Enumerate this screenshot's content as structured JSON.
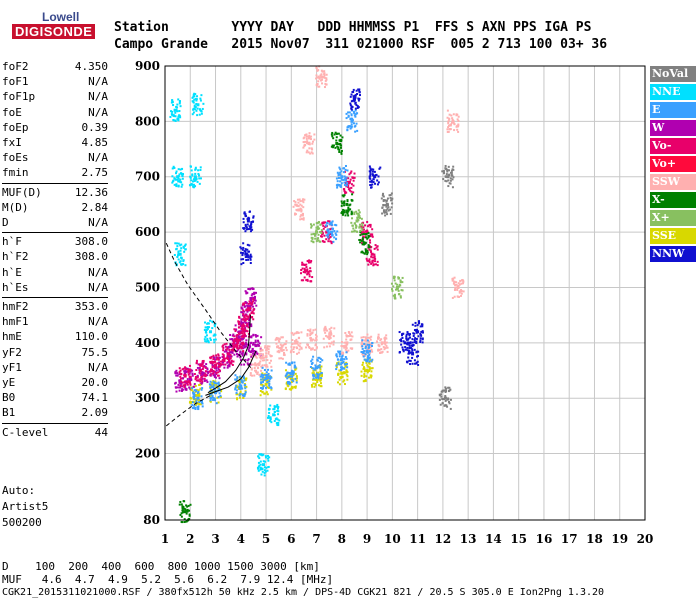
{
  "logo": {
    "line1": "Lowell",
    "line2": "DIGISONDE"
  },
  "header": {
    "row1": "Station        YYYY DAY   DDD HHMMSS P1  FFS S AXN PPS IGA PS",
    "row2": "Campo Grande   2015 Nov07  311 021000 RSF  005 2 713 100 03+ 36"
  },
  "params": [
    {
      "name": "foF2",
      "value": "4.350"
    },
    {
      "name": "foF1",
      "value": "N/A"
    },
    {
      "name": "foF1p",
      "value": "N/A"
    },
    {
      "name": "foE",
      "value": "N/A"
    },
    {
      "name": "foEp",
      "value": "0.39"
    },
    {
      "name": "fxI",
      "value": "4.85"
    },
    {
      "name": "foEs",
      "value": "N/A"
    },
    {
      "name": "fmin",
      "value": "2.75"
    },
    {
      "name": "MUF(D)",
      "value": "12.36"
    },
    {
      "name": "M(D)",
      "value": "2.84"
    },
    {
      "name": "D",
      "value": "N/A"
    },
    {
      "name": "h`F",
      "value": "308.0"
    },
    {
      "name": "h`F2",
      "value": "308.0"
    },
    {
      "name": "h`E",
      "value": "N/A"
    },
    {
      "name": "h`Es",
      "value": "N/A"
    },
    {
      "name": "hmF2",
      "value": "353.0"
    },
    {
      "name": "hmF1",
      "value": "N/A"
    },
    {
      "name": "hmE",
      "value": "110.0"
    },
    {
      "name": "yF2",
      "value": "75.5"
    },
    {
      "name": "yF1",
      "value": "N/A"
    },
    {
      "name": "yE",
      "value": "20.0"
    },
    {
      "name": "B0",
      "value": "74.1"
    },
    {
      "name": "B1",
      "value": "2.09"
    },
    {
      "name": "C-level",
      "value": "44"
    }
  ],
  "auto": {
    "line1": "Auto:",
    "line2": "Artist5",
    "line3": "500200"
  },
  "legend": [
    {
      "label": "NoVal",
      "color": "#808080"
    },
    {
      "label": "NNE",
      "color": "#00e0ff"
    },
    {
      "label": "E",
      "color": "#3aa0ff"
    },
    {
      "label": "W",
      "color": "#b000b0"
    },
    {
      "label": "Vo-",
      "color": "#e8006a"
    },
    {
      "label": "Vo+",
      "color": "#ff0a3c"
    },
    {
      "label": "SSW",
      "color": "#ffb0b0"
    },
    {
      "label": "X-",
      "color": "#008000"
    },
    {
      "label": "X+",
      "color": "#88c060"
    },
    {
      "label": "SSE",
      "color": "#d8d800"
    },
    {
      "label": "NNW",
      "color": "#1010d0"
    }
  ],
  "chart_data": {
    "type": "scatter",
    "xlim": [
      1,
      20
    ],
    "ylim": [
      80,
      900
    ],
    "x_ticks": [
      "1",
      "2",
      "3",
      "4",
      "5",
      "6",
      "7",
      "8",
      "9",
      "10",
      "11",
      "12",
      "13",
      "14",
      "15",
      "16",
      "17",
      "18",
      "19",
      "20"
    ],
    "y_ticks": [
      "80",
      "200",
      "300",
      "400",
      "500",
      "600",
      "700",
      "800",
      "900"
    ],
    "grid": true,
    "legend_position": "right",
    "series": [
      {
        "name": "W",
        "color": "#b000b0",
        "points": [
          [
            1.6,
            330
          ],
          [
            2.0,
            335
          ],
          [
            2.5,
            345
          ],
          [
            3.0,
            355
          ],
          [
            3.5,
            375
          ],
          [
            3.8,
            395
          ],
          [
            4.0,
            420
          ],
          [
            4.2,
            450
          ],
          [
            4.4,
            480
          ],
          [
            4.6,
            395
          ],
          [
            4.2,
            380
          ]
        ]
      },
      {
        "name": "Vo-",
        "color": "#e8006a",
        "points": [
          [
            1.8,
            340
          ],
          [
            2.4,
            350
          ],
          [
            3.0,
            360
          ],
          [
            3.5,
            380
          ],
          [
            3.9,
            405
          ],
          [
            4.1,
            430
          ],
          [
            4.3,
            460
          ],
          [
            6.6,
            530
          ],
          [
            7.4,
            600
          ],
          [
            8.3,
            690
          ],
          [
            9.0,
            600
          ],
          [
            9.2,
            560
          ]
        ]
      },
      {
        "name": "SSW",
        "color": "#ffb0b0",
        "points": [
          [
            4.6,
            360
          ],
          [
            5.0,
            375
          ],
          [
            5.6,
            390
          ],
          [
            6.2,
            400
          ],
          [
            6.8,
            405
          ],
          [
            7.5,
            410
          ],
          [
            8.2,
            400
          ],
          [
            9.0,
            395
          ],
          [
            9.6,
            400
          ],
          [
            6.3,
            640
          ],
          [
            6.7,
            760
          ],
          [
            7.2,
            880
          ],
          [
            12.4,
            800
          ],
          [
            12.6,
            500
          ]
        ]
      },
      {
        "name": "SSE",
        "color": "#d8d800",
        "points": [
          [
            2.2,
            305
          ],
          [
            3.0,
            312
          ],
          [
            4.0,
            318
          ],
          [
            5.0,
            325
          ],
          [
            6.0,
            335
          ],
          [
            7.0,
            340
          ],
          [
            8.0,
            345
          ],
          [
            9.0,
            350
          ]
        ]
      },
      {
        "name": "E",
        "color": "#3aa0ff",
        "points": [
          [
            2.3,
            300
          ],
          [
            3.0,
            310
          ],
          [
            4.0,
            322
          ],
          [
            5.0,
            335
          ],
          [
            6.0,
            345
          ],
          [
            7.0,
            355
          ],
          [
            8.0,
            370
          ],
          [
            9.0,
            385
          ],
          [
            7.6,
            600
          ],
          [
            8.0,
            700
          ],
          [
            8.4,
            800
          ]
        ]
      },
      {
        "name": "NNE",
        "color": "#00e0ff",
        "points": [
          [
            1.4,
            820
          ],
          [
            1.5,
            700
          ],
          [
            1.6,
            560
          ],
          [
            2.8,
            420
          ],
          [
            4.9,
            180
          ],
          [
            5.3,
            270
          ],
          [
            2.3,
            830
          ],
          [
            2.2,
            700
          ]
        ]
      },
      {
        "name": "NNW",
        "color": "#1010d0",
        "points": [
          [
            4.2,
            560
          ],
          [
            4.3,
            620
          ],
          [
            10.5,
            400
          ],
          [
            10.8,
            380
          ],
          [
            11.0,
            420
          ],
          [
            8.5,
            840
          ],
          [
            9.3,
            700
          ]
        ]
      },
      {
        "name": "X-",
        "color": "#008000",
        "points": [
          [
            7.8,
            760
          ],
          [
            8.2,
            650
          ],
          [
            8.9,
            580
          ],
          [
            1.8,
            95
          ]
        ]
      },
      {
        "name": "X+",
        "color": "#88c060",
        "points": [
          [
            7.0,
            600
          ],
          [
            8.6,
            620
          ],
          [
            10.2,
            500
          ]
        ]
      },
      {
        "name": "NoVal",
        "color": "#808080",
        "points": [
          [
            9.8,
            650
          ],
          [
            12.1,
            300
          ],
          [
            12.2,
            700
          ]
        ]
      }
    ]
  },
  "bottom": {
    "d_row": "D    100  200  400  600  800 1000 1500 3000 [km]",
    "muf_row": "MUF   4.6  4.7  4.9  5.2  5.6  6.2  7.9 12.4 [MHz]",
    "footer": "CGK21_2015311021000.RSF / 380fx512h 50 kHz 2.5 km / DPS-4D CGK21 821 / 20.5 S 305.0 E Ion2Png 1.3.20"
  }
}
